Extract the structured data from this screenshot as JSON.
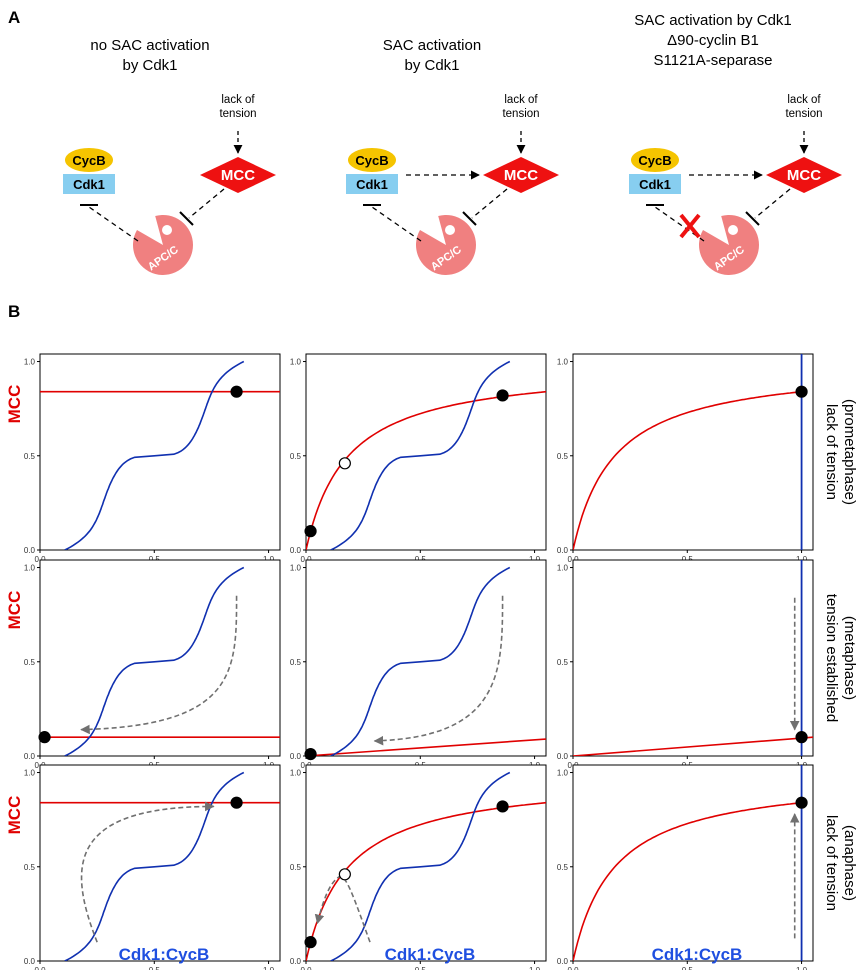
{
  "panel_a": {
    "letter": "A",
    "columns": [
      {
        "title": [
          "no SAC activation",
          "by Cdk1"
        ],
        "tension_label": [
          "lack of",
          "tension"
        ],
        "cdk1_activates_mcc": false,
        "blocked_inhibition": false
      },
      {
        "title": [
          "SAC activation",
          "by Cdk1"
        ],
        "tension_label": [
          "lack of",
          "tension"
        ],
        "cdk1_activates_mcc": true,
        "blocked_inhibition": false
      },
      {
        "title": [
          "SAC activation by Cdk1",
          "Δ90-cyclin B1",
          "S1121A-separase"
        ],
        "tension_label": [
          "lack of",
          "tension"
        ],
        "cdk1_activates_mcc": true,
        "blocked_inhibition": true
      }
    ],
    "nodes": {
      "cycb": "CycB",
      "cdk1": "Cdk1",
      "mcc": "MCC",
      "apc": "APC/C"
    },
    "colors": {
      "cycb": "#f5c400",
      "cdk1": "#87cef0",
      "mcc": "#ee1111",
      "apc": "#f08080",
      "block": "#ee1111"
    }
  },
  "panel_b": {
    "letter": "B",
    "y_label": "MCC",
    "x_label": "Cdk1:CycB",
    "row_labels": [
      [
        "lack of tension",
        "(prometaphase)"
      ],
      [
        "tension established",
        "(metaphase)"
      ],
      [
        "lack of tension",
        "(anaphase)"
      ]
    ],
    "colors": {
      "red": "#e00000",
      "blue": "#1030b0",
      "arrow": "#707070"
    }
  },
  "chart_data": [
    {
      "type": "line",
      "position": "row1-col1",
      "xlim": [
        0,
        1
      ],
      "ylim": [
        0,
        1
      ],
      "xticks": [
        "0.0",
        "0.5",
        "1.0"
      ],
      "yticks": [
        "0.0",
        "0.5",
        "1.0"
      ],
      "series": [
        {
          "color": "red",
          "shape": "constant",
          "y": 0.84
        },
        {
          "color": "blue",
          "shape": "sigmoid-cubic",
          "x": [
            0.01,
            0.1,
            0.5,
            0.86,
            0.93
          ],
          "y": [
            0.0,
            0.38,
            0.53,
            0.84,
            1.0
          ]
        }
      ],
      "steady_states": [
        {
          "x": 0.86,
          "y": 0.84,
          "stable": true
        }
      ]
    },
    {
      "type": "line",
      "position": "row1-col2",
      "xlim": [
        0,
        1
      ],
      "ylim": [
        0,
        1
      ],
      "xticks": [
        "0.0",
        "0.5",
        "1.0"
      ],
      "yticks": [
        "0.0",
        "0.5",
        "1.0"
      ],
      "series": [
        {
          "color": "red",
          "shape": "saturating",
          "x": [
            0,
            0.17,
            0.5,
            1.05
          ],
          "y": [
            0.0,
            0.46,
            0.68,
            0.84
          ]
        },
        {
          "color": "blue",
          "shape": "sigmoid-cubic",
          "x": [
            0.01,
            0.1,
            0.5,
            0.86,
            0.93
          ],
          "y": [
            0.0,
            0.38,
            0.53,
            0.82,
            1.0
          ]
        }
      ],
      "steady_states": [
        {
          "x": 0.02,
          "y": 0.1,
          "stable": true
        },
        {
          "x": 0.17,
          "y": 0.46,
          "stable": false
        },
        {
          "x": 0.86,
          "y": 0.82,
          "stable": true
        }
      ]
    },
    {
      "type": "line",
      "position": "row1-col3",
      "xlim": [
        0,
        1
      ],
      "ylim": [
        0,
        1
      ],
      "xticks": [
        "0.0",
        "0.5",
        "1.0"
      ],
      "yticks": [
        "0.0",
        "0.5",
        "1.0"
      ],
      "series": [
        {
          "color": "red",
          "shape": "saturating",
          "x": [
            0,
            0.2,
            0.5,
            1.0
          ],
          "y": [
            0.0,
            0.48,
            0.68,
            0.84
          ]
        },
        {
          "color": "blue",
          "shape": "vertical",
          "x": 1.0
        }
      ],
      "steady_states": [
        {
          "x": 1.0,
          "y": 0.84,
          "stable": true
        }
      ]
    },
    {
      "type": "line",
      "position": "row2-col1",
      "xlim": [
        0,
        1
      ],
      "ylim": [
        0,
        1
      ],
      "xticks": [
        "0.0",
        "0.5",
        "1.0"
      ],
      "yticks": [
        "0.0",
        "0.5",
        "1.0"
      ],
      "series": [
        {
          "color": "red",
          "shape": "constant",
          "y": 0.1
        },
        {
          "color": "blue",
          "shape": "sigmoid-cubic",
          "x": [
            0.01,
            0.1,
            0.5,
            0.86,
            0.93
          ],
          "y": [
            0.0,
            0.38,
            0.53,
            0.84,
            1.0
          ]
        }
      ],
      "steady_states": [
        {
          "x": 0.02,
          "y": 0.1,
          "stable": true
        }
      ],
      "trajectory": {
        "from": [
          0.86,
          0.85
        ],
        "to": [
          0.18,
          0.14
        ]
      }
    },
    {
      "type": "line",
      "position": "row2-col2",
      "xlim": [
        0,
        1
      ],
      "ylim": [
        0,
        1
      ],
      "xticks": [
        "0.0",
        "0.5",
        "1.0"
      ],
      "yticks": [
        "0.0",
        "0.5",
        "1.0"
      ],
      "series": [
        {
          "color": "red",
          "shape": "linear",
          "x": [
            0,
            1.05
          ],
          "y": [
            0.0,
            0.09
          ]
        },
        {
          "color": "blue",
          "shape": "sigmoid-cubic",
          "x": [
            0.01,
            0.1,
            0.5,
            0.86,
            0.93
          ],
          "y": [
            0.0,
            0.38,
            0.53,
            0.84,
            1.0
          ]
        }
      ],
      "steady_states": [
        {
          "x": 0.02,
          "y": 0.01,
          "stable": true
        }
      ],
      "trajectory": {
        "from": [
          0.86,
          0.85
        ],
        "to": [
          0.3,
          0.08
        ]
      }
    },
    {
      "type": "line",
      "position": "row2-col3",
      "xlim": [
        0,
        1
      ],
      "ylim": [
        0,
        1
      ],
      "xticks": [
        "0.0",
        "0.5",
        "1.0"
      ],
      "yticks": [
        "0.0",
        "0.5",
        "1.0"
      ],
      "series": [
        {
          "color": "red",
          "shape": "linear",
          "x": [
            0,
            1.05
          ],
          "y": [
            0.0,
            0.1
          ]
        },
        {
          "color": "blue",
          "shape": "vertical",
          "x": 1.0
        }
      ],
      "steady_states": [
        {
          "x": 1.0,
          "y": 0.1,
          "stable": true
        }
      ],
      "trajectory": {
        "from": [
          0.97,
          0.84
        ],
        "to": [
          0.97,
          0.14
        ]
      }
    },
    {
      "type": "line",
      "position": "row3-col1",
      "xlim": [
        0,
        1
      ],
      "ylim": [
        0,
        1
      ],
      "xticks": [
        "0.0",
        "0.5",
        "1.0"
      ],
      "yticks": [
        "0.0",
        "0.5",
        "1.0"
      ],
      "series": [
        {
          "color": "red",
          "shape": "constant",
          "y": 0.84
        },
        {
          "color": "blue",
          "shape": "sigmoid-cubic",
          "x": [
            0.01,
            0.1,
            0.5,
            0.86,
            0.93
          ],
          "y": [
            0.0,
            0.38,
            0.53,
            0.84,
            1.0
          ]
        }
      ],
      "steady_states": [
        {
          "x": 0.86,
          "y": 0.84,
          "stable": true
        }
      ],
      "trajectory": {
        "from": [
          0.25,
          0.1
        ],
        "to": [
          0.76,
          0.82
        ]
      }
    },
    {
      "type": "line",
      "position": "row3-col2",
      "xlim": [
        0,
        1
      ],
      "ylim": [
        0,
        1
      ],
      "xticks": [
        "0.0",
        "0.5",
        "1.0"
      ],
      "yticks": [
        "0.0",
        "0.5",
        "1.0"
      ],
      "series": [
        {
          "color": "red",
          "shape": "saturating",
          "x": [
            0,
            0.17,
            0.5,
            1.05
          ],
          "y": [
            0.0,
            0.46,
            0.68,
            0.84
          ]
        },
        {
          "color": "blue",
          "shape": "sigmoid-cubic",
          "x": [
            0.01,
            0.1,
            0.5,
            0.86,
            0.93
          ],
          "y": [
            0.0,
            0.38,
            0.53,
            0.82,
            1.0
          ]
        }
      ],
      "steady_states": [
        {
          "x": 0.02,
          "y": 0.1,
          "stable": true
        },
        {
          "x": 0.17,
          "y": 0.46,
          "stable": false
        },
        {
          "x": 0.86,
          "y": 0.82,
          "stable": true
        }
      ],
      "trajectory": {
        "from": [
          0.28,
          0.1
        ],
        "to": [
          0.05,
          0.2
        ]
      }
    },
    {
      "type": "line",
      "position": "row3-col3",
      "xlim": [
        0,
        1
      ],
      "ylim": [
        0,
        1
      ],
      "xticks": [
        "0.0",
        "0.5",
        "1.0"
      ],
      "yticks": [
        "0.0",
        "0.5",
        "1.0"
      ],
      "series": [
        {
          "color": "red",
          "shape": "saturating",
          "x": [
            0,
            0.2,
            0.5,
            1.0
          ],
          "y": [
            0.0,
            0.48,
            0.68,
            0.84
          ]
        },
        {
          "color": "blue",
          "shape": "vertical",
          "x": 1.0
        }
      ],
      "steady_states": [
        {
          "x": 1.0,
          "y": 0.84,
          "stable": true
        }
      ],
      "trajectory": {
        "from": [
          0.97,
          0.12
        ],
        "to": [
          0.97,
          0.78
        ]
      }
    }
  ]
}
